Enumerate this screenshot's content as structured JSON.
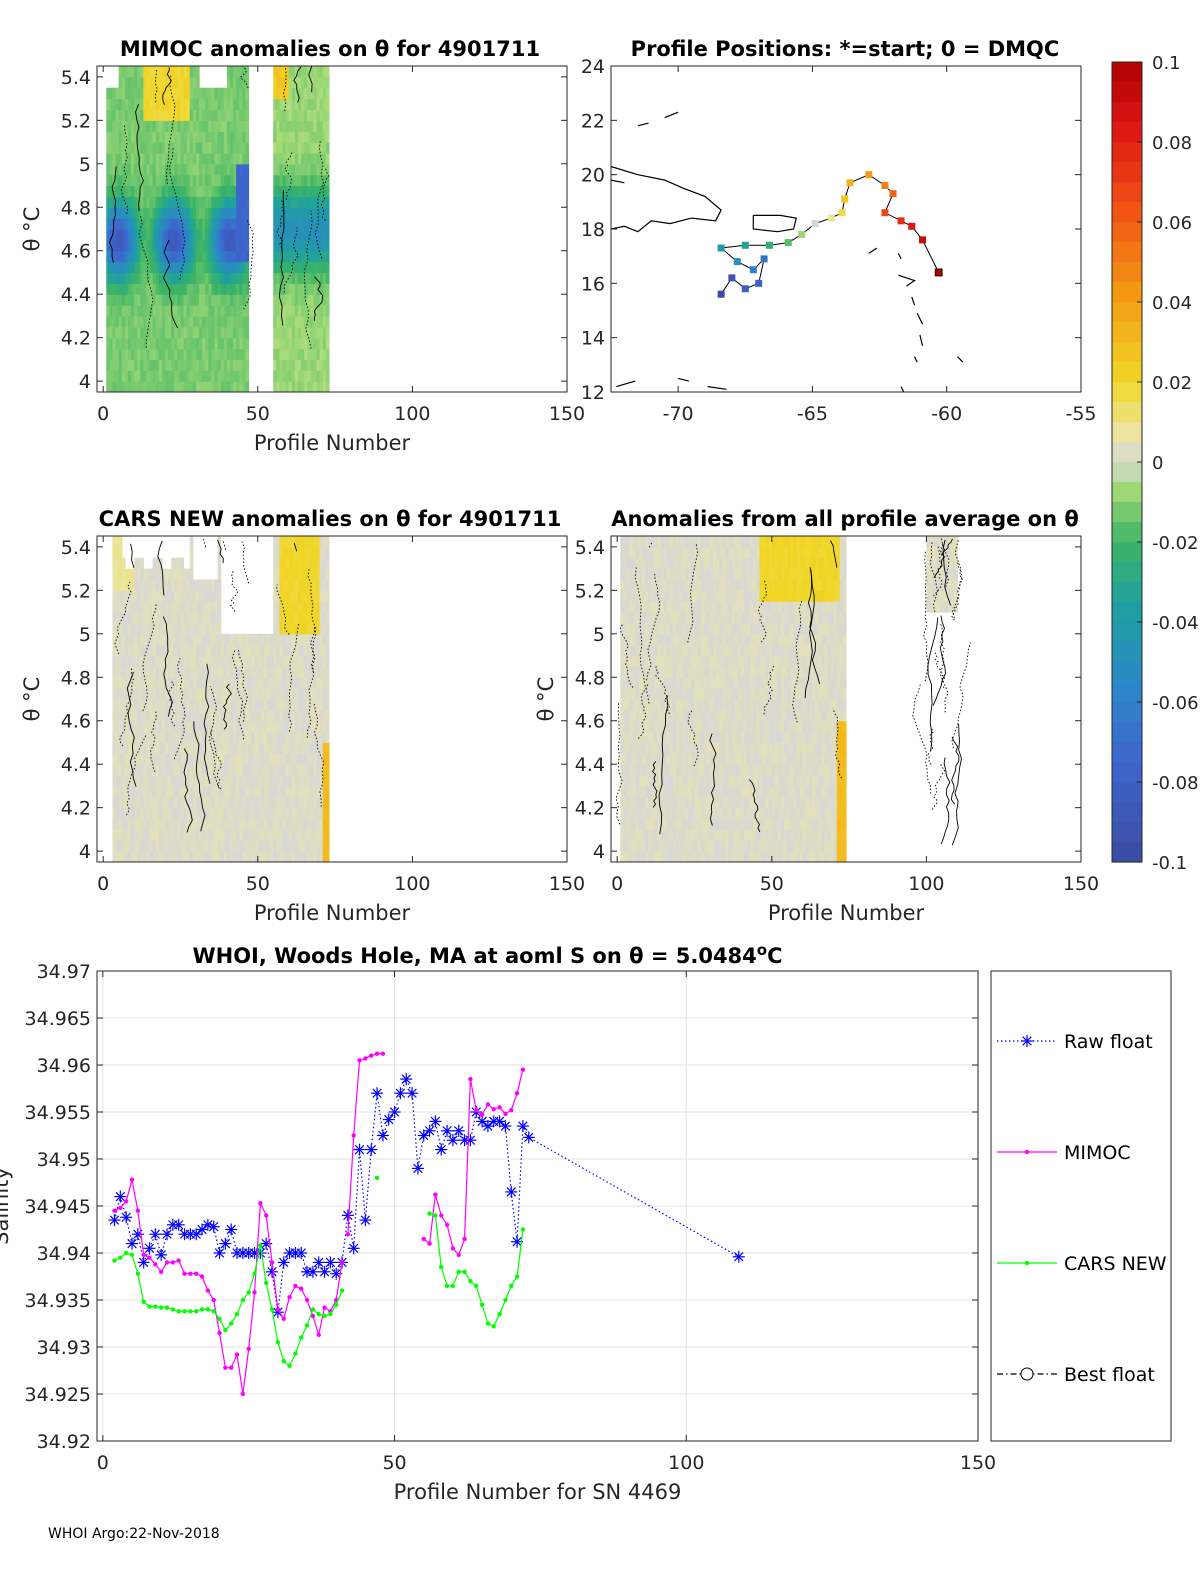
{
  "footer": "WHOI Argo:22-Nov-2018",
  "colorbar": {
    "ticks": [
      "0.1",
      "0.08",
      "0.06",
      "0.04",
      "0.02",
      "0",
      "-0.02",
      "-0.04",
      "-0.06",
      "-0.08",
      "-0.1"
    ],
    "range": [
      -0.1,
      0.1
    ]
  },
  "chart_data": [
    {
      "id": "mimoc",
      "type": "heatmap",
      "title": "MIMOC anomalies on θ  for 4901711",
      "xlabel": "Profile Number",
      "ylabel": "θ °C",
      "xlim": [
        -2,
        150
      ],
      "ylim": [
        3.95,
        5.45
      ],
      "xticks": [
        "0",
        "50",
        "100",
        "150"
      ],
      "yticks": [
        "4",
        "4.2",
        "4.4",
        "4.6",
        "4.8",
        "5",
        "5.2",
        "5.4"
      ],
      "profile_extent": [
        {
          "x": [
            1,
            47
          ],
          "theta": [
            3.97,
            5.45
          ]
        },
        {
          "x": [
            55,
            73
          ],
          "theta": [
            3.97,
            5.45
          ]
        }
      ],
      "anomaly_range": [
        -0.07,
        0.03
      ]
    },
    {
      "id": "positions",
      "type": "scatter",
      "title": "Profile Positions: *=start; 0 = DMQC",
      "xlim": [
        -72.5,
        -55
      ],
      "ylim": [
        12,
        24
      ],
      "xticks": [
        "-70",
        "-65",
        "-60",
        "-55"
      ],
      "yticks": [
        "12",
        "14",
        "16",
        "18",
        "20",
        "22",
        "24"
      ],
      "track": [
        {
          "lon": -60.3,
          "lat": 16.4
        },
        {
          "lon": -60.9,
          "lat": 17.6
        },
        {
          "lon": -61.3,
          "lat": 18.1
        },
        {
          "lon": -61.7,
          "lat": 18.3
        },
        {
          "lon": -62.3,
          "lat": 18.6
        },
        {
          "lon": -62.0,
          "lat": 19.3
        },
        {
          "lon": -62.3,
          "lat": 19.6
        },
        {
          "lon": -62.9,
          "lat": 20.0
        },
        {
          "lon": -63.6,
          "lat": 19.7
        },
        {
          "lon": -63.8,
          "lat": 19.1
        },
        {
          "lon": -63.9,
          "lat": 18.6
        },
        {
          "lon": -64.3,
          "lat": 18.4
        },
        {
          "lon": -64.9,
          "lat": 18.2
        },
        {
          "lon": -65.4,
          "lat": 17.8
        },
        {
          "lon": -65.9,
          "lat": 17.5
        },
        {
          "lon": -66.6,
          "lat": 17.4
        },
        {
          "lon": -67.5,
          "lat": 17.4
        },
        {
          "lon": -68.4,
          "lat": 17.3
        },
        {
          "lon": -67.8,
          "lat": 16.8
        },
        {
          "lon": -67.2,
          "lat": 16.5
        },
        {
          "lon": -66.8,
          "lat": 16.9
        },
        {
          "lon": -67.0,
          "lat": 16.0
        },
        {
          "lon": -67.5,
          "lat": 15.8
        },
        {
          "lon": -68.0,
          "lat": 16.2
        },
        {
          "lon": -68.4,
          "lat": 15.6
        }
      ]
    },
    {
      "id": "cars",
      "type": "heatmap",
      "title": "CARS NEW anomalies on θ for 4901711",
      "xlabel": "Profile Number",
      "ylabel": "θ °C",
      "xlim": [
        -2,
        150
      ],
      "ylim": [
        3.95,
        5.45
      ],
      "xticks": [
        "0",
        "50",
        "100",
        "150"
      ],
      "yticks": [
        "4",
        "4.2",
        "4.4",
        "4.6",
        "4.8",
        "5",
        "5.2",
        "5.4"
      ],
      "profile_extent": [
        {
          "x": [
            3,
            73
          ],
          "theta": [
            3.97,
            5.45
          ]
        }
      ],
      "anomaly_range": [
        -0.01,
        0.03
      ]
    },
    {
      "id": "allprof",
      "type": "heatmap",
      "title": "Anomalies from all profile average on θ",
      "xlabel": "Profile Number",
      "ylabel": "θ °C",
      "xlim": [
        -2,
        150
      ],
      "ylim": [
        3.95,
        5.45
      ],
      "xticks": [
        "0",
        "50",
        "100",
        "150"
      ],
      "yticks": [
        "4",
        "4.2",
        "4.4",
        "4.6",
        "4.8",
        "5",
        "5.2",
        "5.4"
      ],
      "profile_extent": [
        {
          "x": [
            1,
            74
          ],
          "theta": [
            3.97,
            5.45
          ]
        },
        {
          "x": [
            100,
            110
          ],
          "theta": [
            5.1,
            5.45
          ]
        }
      ],
      "anomaly_range": [
        -0.01,
        0.03
      ]
    },
    {
      "id": "salinity",
      "type": "line",
      "title_prefix": "WHOI, Woods Hole, MA at aoml S on θ = 5.0484",
      "title_sup": "o",
      "title_suffix": "C",
      "xlabel": "Profile Number for SN 4469",
      "ylabel": "Salinity",
      "xlim": [
        -1,
        150
      ],
      "ylim": [
        34.92,
        34.97
      ],
      "xticks": [
        "0",
        "50",
        "100",
        "150"
      ],
      "yticks": [
        "34.92",
        "34.925",
        "34.93",
        "34.935",
        "34.94",
        "34.945",
        "34.95",
        "34.955",
        "34.96",
        "34.965",
        "34.97"
      ],
      "legend_location": "outside-right",
      "series": [
        {
          "name": "Raw float",
          "color": "#0000ff",
          "marker": "asterisk",
          "x": [
            2,
            3,
            4,
            5,
            6,
            7,
            8,
            9,
            10,
            11,
            12,
            13,
            14,
            15,
            16,
            17,
            18,
            19,
            20,
            21,
            22,
            23,
            24,
            25,
            26,
            27,
            28,
            29,
            30,
            31,
            32,
            33,
            34,
            35,
            36,
            37,
            38,
            39,
            40,
            41,
            42,
            43,
            44,
            45,
            46,
            47,
            48,
            49,
            50,
            51,
            52,
            53,
            54,
            55,
            56,
            57,
            58,
            59,
            60,
            61,
            62,
            63,
            64,
            65,
            66,
            67,
            68,
            69,
            70,
            71,
            72,
            73,
            109
          ],
          "y": [
            34.9435,
            34.946,
            34.9438,
            34.941,
            34.942,
            34.939,
            34.9405,
            34.942,
            34.9398,
            34.942,
            34.943,
            34.943,
            34.942,
            34.942,
            34.942,
            34.9425,
            34.943,
            34.9428,
            34.94,
            34.941,
            34.9425,
            34.94,
            34.94,
            34.94,
            34.94,
            34.94,
            34.941,
            34.938,
            34.9337,
            34.939,
            34.94,
            34.94,
            34.94,
            34.938,
            34.938,
            34.939,
            34.938,
            34.939,
            34.9378,
            34.939,
            34.944,
            34.9405,
            34.951,
            34.9435,
            34.951,
            34.957,
            34.9525,
            34.9542,
            34.955,
            34.957,
            34.9585,
            34.957,
            34.949,
            34.9525,
            34.953,
            34.954,
            34.951,
            34.953,
            34.952,
            34.953,
            34.952,
            34.952,
            34.955,
            34.954,
            34.9535,
            34.954,
            34.954,
            34.9535,
            34.9465,
            34.9412,
            34.9535,
            34.9523,
            34.9396
          ]
        },
        {
          "name": "MIMOC",
          "color": "#ff00ff",
          "marker": "dot",
          "x": [
            2,
            3,
            4,
            5,
            6,
            7,
            8,
            9,
            10,
            11,
            12,
            13,
            14,
            15,
            16,
            17,
            18,
            19,
            20,
            21,
            22,
            23,
            24,
            25,
            26,
            27,
            28,
            29,
            30,
            31,
            32,
            33,
            34,
            35,
            36,
            37,
            38,
            39,
            40,
            41,
            null,
            42,
            43,
            44,
            45,
            46,
            47,
            48,
            null,
            55,
            56,
            57,
            58,
            59,
            60,
            61,
            62,
            63,
            64,
            65,
            66,
            67,
            68,
            69,
            70,
            71,
            72
          ],
          "y": [
            34.9445,
            34.9448,
            34.9455,
            34.9478,
            34.9445,
            34.9398,
            34.9395,
            34.9388,
            34.938,
            34.939,
            34.939,
            34.9392,
            34.9378,
            34.9378,
            34.9378,
            34.9375,
            34.936,
            34.935,
            34.9315,
            34.9278,
            34.9278,
            34.9292,
            34.925,
            34.9298,
            34.9358,
            34.9453,
            34.944,
            34.939,
            34.934,
            34.933,
            34.9353,
            34.9365,
            34.9362,
            34.935,
            34.9333,
            34.9313,
            34.9342,
            34.9338,
            34.935,
            34.939,
            null,
            34.942,
            34.9525,
            34.9605,
            34.9607,
            34.961,
            34.9612,
            34.9612,
            null,
            34.9415,
            34.941,
            34.9462,
            34.944,
            34.943,
            34.9405,
            34.9398,
            34.9415,
            34.9585,
            34.9552,
            34.9547,
            34.9558,
            34.9553,
            34.9555,
            34.9548,
            34.9552,
            34.957,
            34.9595
          ]
        },
        {
          "name": "CARS NEW",
          "color": "#00ff00",
          "marker": "dot",
          "x": [
            2,
            3,
            4,
            5,
            6,
            7,
            8,
            9,
            10,
            11,
            12,
            13,
            14,
            15,
            16,
            17,
            18,
            19,
            20,
            21,
            22,
            23,
            24,
            25,
            26,
            27,
            28,
            29,
            30,
            31,
            32,
            33,
            34,
            35,
            36,
            37,
            38,
            39,
            40,
            41,
            null,
            47,
            null,
            56,
            57,
            58,
            59,
            60,
            61,
            62,
            63,
            64,
            65,
            66,
            67,
            68,
            69,
            70,
            71,
            72
          ],
          "y": [
            34.9392,
            34.9395,
            34.94,
            34.9398,
            34.9378,
            34.9348,
            34.9343,
            34.9343,
            34.9342,
            34.9342,
            34.934,
            34.9338,
            34.9338,
            34.9338,
            34.9338,
            34.934,
            34.934,
            34.9338,
            34.933,
            34.9318,
            34.9325,
            34.9335,
            34.935,
            34.9358,
            34.9378,
            34.9408,
            34.9368,
            34.934,
            34.9305,
            34.9285,
            34.928,
            34.9293,
            34.931,
            34.9323,
            34.934,
            34.9335,
            34.9333,
            34.9335,
            34.9345,
            34.936,
            null,
            34.948,
            null,
            34.9442,
            34.944,
            34.9385,
            34.9365,
            34.9365,
            34.938,
            34.938,
            34.937,
            34.9365,
            34.9345,
            34.9325,
            34.9322,
            34.9335,
            34.935,
            34.9365,
            34.9375,
            34.9425
          ]
        },
        {
          "name": "Best float",
          "color": "#000000",
          "marker": "circle",
          "x": [],
          "y": []
        }
      ]
    }
  ]
}
